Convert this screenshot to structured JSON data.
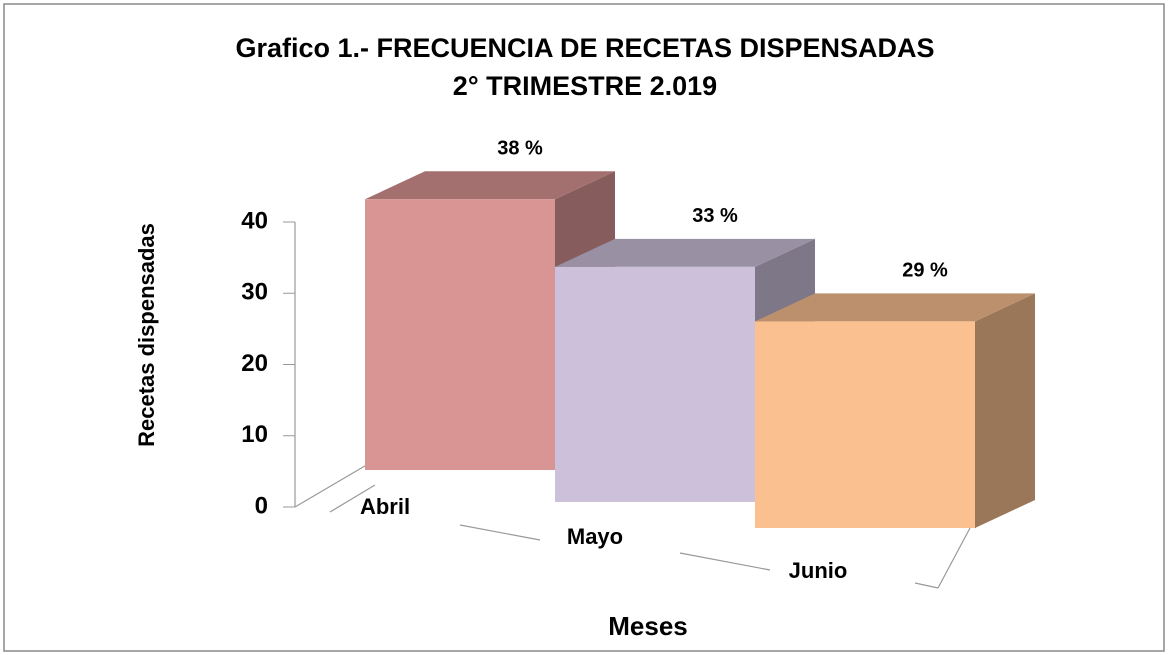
{
  "chart_data": {
    "type": "bar3d",
    "title": "Grafico 1.- FRECUENCIA DE RECETAS DISPENSADAS",
    "subtitle": "2° TRIMESTRE 2.019",
    "x_label": "Meses",
    "y_label": "Recetas dispensadas",
    "categories": [
      "Abril",
      "Mayo",
      "Junio"
    ],
    "values": [
      38,
      33,
      29
    ],
    "value_labels": [
      "38 %",
      "33 %",
      "29 %"
    ],
    "colors": [
      "#d99594",
      "#ccc0da",
      "#fac090"
    ],
    "ylim": [
      0,
      40
    ],
    "yticks": [
      0,
      10,
      20,
      30,
      40
    ]
  }
}
